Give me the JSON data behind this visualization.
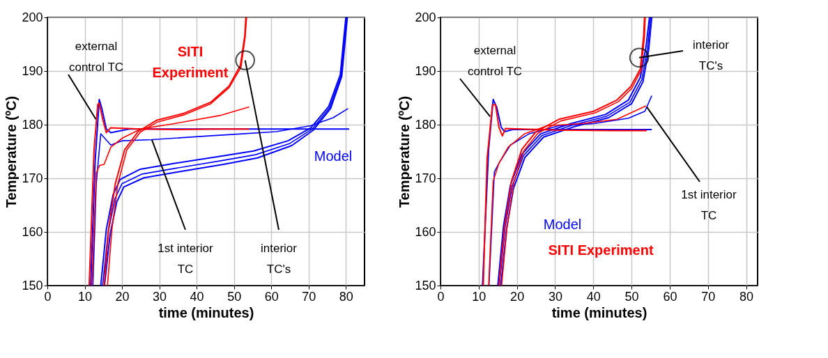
{
  "chart_data": [
    {
      "type": "line",
      "xlabel": "time (minutes)",
      "ylabel": "Temperature (ºC)",
      "xlim": [
        0,
        85
      ],
      "ylim": [
        150,
        200
      ],
      "xticks": [
        0,
        10,
        20,
        30,
        40,
        50,
        60,
        70,
        80
      ],
      "yticks": [
        150,
        160,
        170,
        180,
        190,
        200
      ],
      "grid": true,
      "annotations": [
        {
          "text": "external control TC",
          "x": 13,
          "y": 181
        },
        {
          "text": "1st interior TC",
          "x": 28,
          "y": 177.2
        },
        {
          "text": "interior TC's",
          "x": 53,
          "y": 192
        }
      ],
      "series": [
        {
          "name": "SITI Experiment",
          "color": "#ff0000",
          "x": [
            11.2,
            12.5,
            13.5,
            13.9,
            14.9,
            15.8,
            16.9,
            25,
            35,
            45,
            54.1
          ],
          "values": [
            150,
            175.3,
            183.8,
            184,
            180.8,
            178.5,
            179.4,
            179.2,
            179.1,
            179.2,
            179.2
          ]
        },
        {
          "color": "#ff0000",
          "x": [
            11.9,
            13.1,
            14,
            15.2,
            17,
            20.1,
            25,
            34,
            46.2,
            54.1
          ],
          "values": [
            150,
            171,
            172.4,
            172.6,
            175.8,
            177.5,
            179.2,
            180.2,
            181.7,
            183.3
          ]
        },
        {
          "color": "#ff0000",
          "x": [
            15.2,
            16.4,
            18.2,
            20.7,
            24.3,
            29.2,
            36.5,
            43.8,
            48.7,
            51.7,
            52.9,
            53.2
          ],
          "values": [
            150,
            160.5,
            169,
            175.3,
            178.7,
            180.8,
            182.1,
            184.2,
            187.2,
            191,
            196.5,
            200
          ]
        },
        {
          "color": "#ff0000",
          "x": [
            16.1,
            17.3,
            18.9,
            21.3,
            24.9,
            29.5,
            36.5,
            43.8,
            48.7,
            51.9,
            53,
            53.4
          ],
          "values": [
            150,
            160.5,
            169,
            175.3,
            178.6,
            180.5,
            181.8,
            183.9,
            186.9,
            190.7,
            196.2,
            200
          ]
        },
        {
          "name": "Model",
          "color": "#0000ff",
          "x": [
            11.6,
            12.8,
            13.9,
            14.6,
            15.8,
            17,
            21.9,
            80.9
          ],
          "values": [
            150,
            173.2,
            184.7,
            183,
            179.2,
            178.5,
            179.2,
            179.2
          ]
        },
        {
          "color": "#0000ff",
          "x": [
            12.2,
            13.1,
            14.3,
            17,
            20.1,
            28,
            43.2,
            52.3,
            61.4,
            70.6,
            76.6,
            80.6
          ],
          "values": [
            150,
            169,
            178.3,
            176.2,
            177,
            177.2,
            177.9,
            178.3,
            178.7,
            179.8,
            181.3,
            183
          ]
        },
        {
          "color": "#0000ff",
          "x": [
            14.3,
            15.8,
            17.6,
            19.5,
            24.9,
            34.1,
            46.2,
            55.3,
            64.5,
            70.6,
            75.4,
            78.5,
            80
          ],
          "values": [
            150,
            160.5,
            166.9,
            169.8,
            171.7,
            172.8,
            174.1,
            175.1,
            177,
            179.4,
            183.4,
            189.3,
            200
          ]
        },
        {
          "color": "#0000ff",
          "x": [
            14.8,
            16.3,
            18.1,
            20,
            25.4,
            34.6,
            46.7,
            55.8,
            65,
            71,
            75.7,
            78.7,
            80.2
          ],
          "values": [
            150,
            160,
            166.2,
            169,
            170.8,
            171.9,
            173.3,
            174.4,
            176.5,
            179.2,
            183.2,
            189.1,
            200
          ]
        },
        {
          "color": "#0000ff",
          "x": [
            15.3,
            16.8,
            18.6,
            20.5,
            25.9,
            35.1,
            47.2,
            56.3,
            65.5,
            71.3,
            75.9,
            78.9,
            80.4
          ],
          "values": [
            150,
            159.5,
            165.6,
            168.4,
            170.1,
            171.2,
            172.6,
            173.8,
            176.1,
            179,
            183,
            189,
            200
          ]
        }
      ]
    },
    {
      "type": "line",
      "xlabel": "time (minutes)",
      "ylabel": "Temperature (ºC)",
      "xlim": [
        0,
        83
      ],
      "ylim": [
        150,
        200
      ],
      "xticks": [
        0,
        10,
        20,
        30,
        40,
        50,
        60,
        70,
        80
      ],
      "yticks": [
        150,
        160,
        170,
        180,
        190,
        200
      ],
      "grid": true,
      "annotations": [
        {
          "text": "external control TC",
          "x": 13,
          "y": 181.5
        },
        {
          "text": "interior TC's",
          "x": 52,
          "y": 192.5
        },
        {
          "text": "1st interior TC",
          "x": 54,
          "y": 183.3
        }
      ],
      "series": [
        {
          "name": "SITI Experiment",
          "color": "#ff0000",
          "x": [
            11.2,
            12.2,
            13.6,
            14.4,
            15.3,
            16.2,
            17,
            30,
            45,
            54
          ],
          "values": [
            150,
            173.7,
            183.7,
            183.7,
            179.5,
            177.9,
            179.3,
            179,
            178.9,
            178.9
          ]
        },
        {
          "color": "#ff0000",
          "x": [
            12.6,
            13.8,
            15.3,
            17.7,
            22,
            28,
            37.1,
            46.2,
            53.8
          ],
          "values": [
            150,
            169.5,
            172.8,
            175.8,
            178.3,
            179.8,
            180.2,
            181,
            183.5
          ]
        },
        {
          "color": "#ff0000",
          "x": [
            15.3,
            16.8,
            18.6,
            21.3,
            25,
            31,
            40.1,
            46.2,
            49.8,
            52.3,
            53.2,
            53.4
          ],
          "values": [
            150,
            161.1,
            169.5,
            175.4,
            178.7,
            181,
            182.5,
            184.6,
            187.1,
            190.4,
            196.7,
            200
          ]
        },
        {
          "color": "#ff0000",
          "x": [
            16,
            17.4,
            19.2,
            21.8,
            25.5,
            31.5,
            40.5,
            46.6,
            50.1,
            52.5,
            53.4,
            53.6
          ],
          "values": [
            150,
            160.8,
            169.2,
            175.1,
            178.4,
            180.7,
            182.2,
            184.3,
            186.8,
            190.1,
            196.5,
            200
          ]
        },
        {
          "name": "Model",
          "color": "#0000ff",
          "x": [
            11,
            12.6,
            13.8,
            14.7,
            15.9,
            16.8,
            18.9,
            35,
            55.3
          ],
          "values": [
            150,
            175.4,
            184.7,
            183.3,
            179.5,
            178.7,
            179.1,
            179.1,
            179.1
          ]
        },
        {
          "color": "#0000ff",
          "x": [
            12.7,
            14.1,
            15.3,
            18.3,
            23.2,
            31,
            40.1,
            49.2,
            53.5,
            55.3
          ],
          "values": [
            150,
            171.2,
            172.8,
            176.2,
            178.3,
            179.8,
            180.2,
            181.2,
            182.5,
            185.4
          ]
        },
        {
          "color": "#0000ff",
          "x": [
            15,
            16.5,
            18.3,
            21.3,
            26.2,
            34.1,
            43.2,
            49.2,
            52.3,
            53.8,
            54.7
          ],
          "values": [
            150,
            161.1,
            168.7,
            174.5,
            178.3,
            180.2,
            181.9,
            184.6,
            188.8,
            194.6,
            200
          ]
        },
        {
          "color": "#0000ff",
          "x": [
            15.4,
            16.9,
            18.7,
            21.7,
            26.6,
            34.5,
            43.6,
            49.6,
            52.7,
            54.2,
            55
          ],
          "values": [
            150,
            160.8,
            168.4,
            174.2,
            178,
            179.9,
            181.6,
            184.2,
            188.4,
            194.3,
            200
          ]
        },
        {
          "color": "#0000ff",
          "x": [
            15.8,
            17.3,
            19.1,
            22.1,
            27,
            34.9,
            44,
            50,
            53,
            54.5,
            55.3
          ],
          "values": [
            150,
            160.5,
            168.1,
            173.9,
            177.7,
            179.6,
            181.3,
            183.9,
            188,
            194,
            200
          ]
        }
      ]
    }
  ]
}
